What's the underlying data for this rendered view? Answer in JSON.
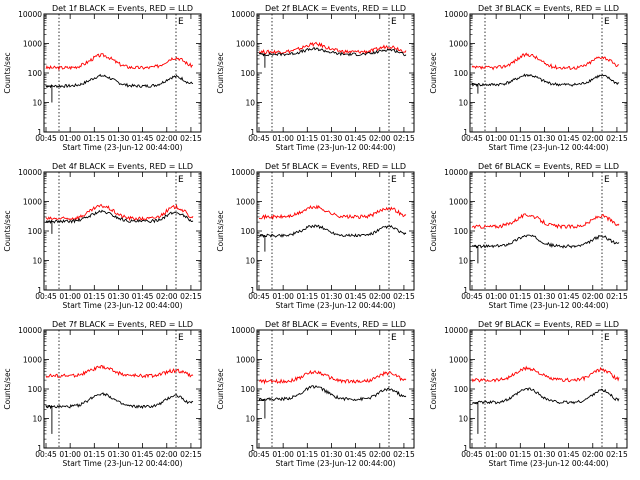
{
  "figure": {
    "xlabel": "Start Time (23-Jun-12 00:44:00)",
    "ylabel": "Counts/sec"
  },
  "chart_data": [
    {
      "type": "line",
      "title": "Det 1f BLACK = Events, RED = LLD",
      "flag": "E",
      "ylim": [
        1,
        10000
      ],
      "log_y": true,
      "x_ticks": [
        "00:45",
        "01:00",
        "01:15",
        "01:30",
        "01:45",
        "02:00",
        "02:15"
      ],
      "y_ticks": [
        "1",
        "10",
        "100",
        "1000",
        "10000"
      ],
      "events_base": 36,
      "lld_base": 150,
      "events_p1": 80,
      "lld_p1": 400,
      "events_p2": 75,
      "lld_p2": 330,
      "events_end": 45,
      "lld_end": 180,
      "start_dip": 10,
      "series": [
        {
          "name": "Events",
          "color": "#000000"
        },
        {
          "name": "LLD",
          "color": "#ff0000"
        }
      ]
    },
    {
      "type": "line",
      "title": "Det 2f BLACK = Events, RED = LLD",
      "flag": "E",
      "ylim": [
        1,
        10000
      ],
      "log_y": true,
      "x_ticks": [
        "00:45",
        "01:00",
        "01:15",
        "01:30",
        "01:45",
        "02:00",
        "02:15"
      ],
      "y_ticks": [
        "1",
        "10",
        "100",
        "1000",
        "10000"
      ],
      "events_base": 430,
      "lld_base": 520,
      "events_p1": 650,
      "lld_p1": 950,
      "events_p2": 620,
      "lld_p2": 800,
      "events_end": 420,
      "lld_end": 560,
      "start_dip": 150,
      "series": [
        {
          "name": "Events",
          "color": "#000000"
        },
        {
          "name": "LLD",
          "color": "#ff0000"
        }
      ]
    },
    {
      "type": "line",
      "title": "Det 3f BLACK = Events, RED = LLD",
      "flag": "E",
      "ylim": [
        1,
        10000
      ],
      "log_y": true,
      "x_ticks": [
        "00:45",
        "01:00",
        "01:15",
        "01:30",
        "01:45",
        "02:00",
        "02:15"
      ],
      "y_ticks": [
        "1",
        "10",
        "100",
        "1000",
        "10000"
      ],
      "events_base": 40,
      "lld_base": 150,
      "events_p1": 85,
      "lld_p1": 420,
      "events_p2": 80,
      "lld_p2": 350,
      "events_end": 45,
      "lld_end": 180,
      "start_dip": 20,
      "series": [
        {
          "name": "Events",
          "color": "#000000"
        },
        {
          "name": "LLD",
          "color": "#ff0000"
        }
      ]
    },
    {
      "type": "line",
      "title": "Det 4f BLACK = Events, RED = LLD",
      "flag": "E",
      "ylim": [
        1,
        10000
      ],
      "log_y": true,
      "x_ticks": [
        "00:45",
        "01:00",
        "01:15",
        "01:30",
        "01:45",
        "02:00",
        "02:15"
      ],
      "y_ticks": [
        "1",
        "10",
        "100",
        "1000",
        "10000"
      ],
      "events_base": 210,
      "lld_base": 260,
      "events_p1": 450,
      "lld_p1": 700,
      "events_p2": 420,
      "lld_p2": 650,
      "events_end": 220,
      "lld_end": 300,
      "start_dip": 80,
      "series": [
        {
          "name": "Events",
          "color": "#000000"
        },
        {
          "name": "LLD",
          "color": "#ff0000"
        }
      ]
    },
    {
      "type": "line",
      "title": "Det 5f BLACK = Events, RED = LLD",
      "flag": "E",
      "ylim": [
        1,
        10000
      ],
      "log_y": true,
      "x_ticks": [
        "00:45",
        "01:00",
        "01:15",
        "01:30",
        "01:45",
        "02:00",
        "02:15"
      ],
      "y_ticks": [
        "1",
        "10",
        "100",
        "1000",
        "10000"
      ],
      "events_base": 70,
      "lld_base": 300,
      "events_p1": 150,
      "lld_p1": 650,
      "events_p2": 140,
      "lld_p2": 600,
      "events_end": 80,
      "lld_end": 320,
      "start_dip": 20,
      "series": [
        {
          "name": "Events",
          "color": "#000000"
        },
        {
          "name": "LLD",
          "color": "#ff0000"
        }
      ]
    },
    {
      "type": "line",
      "title": "Det 6f BLACK = Events, RED = LLD",
      "flag": "E",
      "ylim": [
        1,
        10000
      ],
      "log_y": true,
      "x_ticks": [
        "00:45",
        "01:00",
        "01:15",
        "01:30",
        "01:45",
        "02:00",
        "02:15"
      ],
      "y_ticks": [
        "1",
        "10",
        "100",
        "1000",
        "10000"
      ],
      "events_base": 30,
      "lld_base": 140,
      "events_p1": 70,
      "lld_p1": 350,
      "events_p2": 65,
      "lld_p2": 320,
      "events_end": 40,
      "lld_end": 160,
      "start_dip": 8,
      "series": [
        {
          "name": "Events",
          "color": "#000000"
        },
        {
          "name": "LLD",
          "color": "#ff0000"
        }
      ]
    },
    {
      "type": "line",
      "title": "Det 7f BLACK = Events, RED = LLD",
      "flag": "E",
      "ylim": [
        1,
        10000
      ],
      "log_y": true,
      "x_ticks": [
        "00:45",
        "01:00",
        "01:15",
        "01:30",
        "01:45",
        "02:00",
        "02:15"
      ],
      "y_ticks": [
        "1",
        "10",
        "100",
        "1000",
        "10000"
      ],
      "events_base": 25,
      "lld_base": 280,
      "events_p1": 70,
      "lld_p1": 550,
      "events_p2": 60,
      "lld_p2": 420,
      "events_end": 35,
      "lld_end": 260,
      "start_dip": 3,
      "series": [
        {
          "name": "Events",
          "color": "#000000"
        },
        {
          "name": "LLD",
          "color": "#ff0000"
        }
      ]
    },
    {
      "type": "line",
      "title": "Det 8f BLACK = Events, RED = LLD",
      "flag": "E",
      "ylim": [
        1,
        10000
      ],
      "log_y": true,
      "x_ticks": [
        "00:45",
        "01:00",
        "01:15",
        "01:30",
        "01:45",
        "02:00",
        "02:15"
      ],
      "y_ticks": [
        "1",
        "10",
        "100",
        "1000",
        "10000"
      ],
      "events_base": 45,
      "lld_base": 180,
      "events_p1": 120,
      "lld_p1": 380,
      "events_p2": 100,
      "lld_p2": 350,
      "events_end": 55,
      "lld_end": 200,
      "start_dip": 10,
      "series": [
        {
          "name": "Events",
          "color": "#000000"
        },
        {
          "name": "LLD",
          "color": "#ff0000"
        }
      ]
    },
    {
      "type": "line",
      "title": "Det 9f BLACK = Events, RED = LLD",
      "flag": "E",
      "ylim": [
        1,
        10000
      ],
      "log_y": true,
      "x_ticks": [
        "00:45",
        "01:00",
        "01:15",
        "01:30",
        "01:45",
        "02:00",
        "02:15"
      ],
      "y_ticks": [
        "1",
        "10",
        "100",
        "1000",
        "10000"
      ],
      "events_base": 35,
      "lld_base": 200,
      "events_p1": 100,
      "lld_p1": 500,
      "events_p2": 90,
      "lld_p2": 450,
      "events_end": 45,
      "lld_end": 220,
      "start_dip": 3,
      "series": [
        {
          "name": "Events",
          "color": "#000000"
        },
        {
          "name": "LLD",
          "color": "#ff0000"
        }
      ]
    }
  ]
}
